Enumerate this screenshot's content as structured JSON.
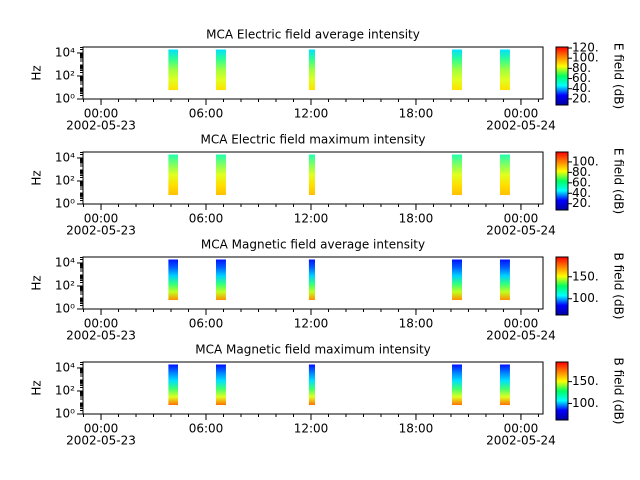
{
  "chart_data": [
    {
      "type": "spectrogram",
      "title": "MCA  Electric field average intensity",
      "ylabel": "Hz",
      "xlim": [
        -1.03,
        25.26
      ],
      "xticks": [
        {
          "value": 0,
          "label": "00:00"
        },
        {
          "value": 6,
          "label": "06:00"
        },
        {
          "value": 12,
          "label": "12:00"
        },
        {
          "value": 18,
          "label": "18:00"
        },
        {
          "value": 24,
          "label": "00:00"
        }
      ],
      "x_date_labels": [
        {
          "value": 0,
          "label": "2002-05-23"
        },
        {
          "value": 24,
          "label": "2002-05-24"
        }
      ],
      "xminor_interval": 1,
      "log_y": true,
      "ylim": [
        1,
        33000
      ],
      "yticks": [
        {
          "value": 1,
          "label": "10⁰"
        },
        {
          "value": 100,
          "label": "10²"
        },
        {
          "value": 10000,
          "label": "10⁴"
        }
      ],
      "bursts": [
        [
          3.85,
          4.4
        ],
        [
          6.57,
          7.14
        ],
        [
          11.88,
          12.23
        ],
        [
          20.06,
          20.63
        ],
        [
          22.8,
          23.37
        ]
      ],
      "burst_freq": [
        6,
        20000
      ],
      "burst_colors": [
        "#00e0ff",
        "#30ff90",
        "#a0ff40",
        "#e0ff20",
        "#ffe000"
      ],
      "colorbar": {
        "label": "E field (dB)",
        "zlim": [
          8,
          122
        ],
        "ticks": [
          {
            "value": 20,
            "label": "20."
          },
          {
            "value": 40,
            "label": "40."
          },
          {
            "value": 60,
            "label": "60."
          },
          {
            "value": 80,
            "label": "80."
          },
          {
            "value": 100,
            "label": "100."
          },
          {
            "value": 120,
            "label": "120."
          }
        ],
        "colors": [
          "#0000a0",
          "#0000ff",
          "#00ffff",
          "#00ff60",
          "#ffff00",
          "#ff8000",
          "#ff0000"
        ]
      }
    },
    {
      "type": "spectrogram",
      "title": "MCA  Electric field maximum intensity",
      "ylabel": "Hz",
      "xlim": [
        -1.03,
        25.26
      ],
      "xticks": [
        {
          "value": 0,
          "label": "00:00"
        },
        {
          "value": 6,
          "label": "06:00"
        },
        {
          "value": 12,
          "label": "12:00"
        },
        {
          "value": 18,
          "label": "18:00"
        },
        {
          "value": 24,
          "label": "00:00"
        }
      ],
      "x_date_labels": [
        {
          "value": 0,
          "label": "2002-05-23"
        },
        {
          "value": 24,
          "label": "2002-05-24"
        }
      ],
      "xminor_interval": 1,
      "log_y": true,
      "ylim": [
        1,
        33000
      ],
      "yticks": [
        {
          "value": 1,
          "label": "10⁰"
        },
        {
          "value": 100,
          "label": "10²"
        },
        {
          "value": 10000,
          "label": "10⁴"
        }
      ],
      "bursts": [
        [
          3.85,
          4.4
        ],
        [
          6.57,
          7.14
        ],
        [
          11.88,
          12.23
        ],
        [
          20.06,
          20.63
        ],
        [
          22.8,
          23.37
        ]
      ],
      "burst_freq": [
        6,
        20000
      ],
      "burst_colors": [
        "#20ffb0",
        "#80ff60",
        "#e0ff20",
        "#ffe000",
        "#ffc000"
      ],
      "colorbar": {
        "label": "E field (dB)",
        "zlim": [
          8,
          119
        ],
        "ticks": [
          {
            "value": 20,
            "label": "20."
          },
          {
            "value": 40,
            "label": "40."
          },
          {
            "value": 60,
            "label": "60."
          },
          {
            "value": 80,
            "label": "80."
          },
          {
            "value": 100,
            "label": "100."
          }
        ],
        "colors": [
          "#0000a0",
          "#0000ff",
          "#00ffff",
          "#00ff60",
          "#ffff00",
          "#ff8000",
          "#ff0000"
        ]
      }
    },
    {
      "type": "spectrogram",
      "title": "MCA  Magnetic field average intensity",
      "ylabel": "Hz",
      "xlim": [
        -1.03,
        25.26
      ],
      "xticks": [
        {
          "value": 0,
          "label": "00:00"
        },
        {
          "value": 6,
          "label": "06:00"
        },
        {
          "value": 12,
          "label": "12:00"
        },
        {
          "value": 18,
          "label": "18:00"
        },
        {
          "value": 24,
          "label": "00:00"
        }
      ],
      "x_date_labels": [
        {
          "value": 0,
          "label": "2002-05-23"
        },
        {
          "value": 24,
          "label": "2002-05-24"
        }
      ],
      "xminor_interval": 1,
      "log_y": true,
      "ylim": [
        1,
        33000
      ],
      "yticks": [
        {
          "value": 1,
          "label": "10⁰"
        },
        {
          "value": 100,
          "label": "10²"
        },
        {
          "value": 10000,
          "label": "10⁴"
        }
      ],
      "bursts": [
        [
          3.85,
          4.4
        ],
        [
          6.57,
          7.14
        ],
        [
          11.88,
          12.23
        ],
        [
          20.06,
          20.63
        ],
        [
          22.8,
          23.37
        ]
      ],
      "burst_freq": [
        6,
        20000
      ],
      "burst_colors": [
        "#0010ff",
        "#0060ff",
        "#00d0ff",
        "#30ff80",
        "#c0ff20",
        "#ff9000"
      ],
      "colorbar": {
        "label": "B field (dB)",
        "zlim": [
          63,
          195
        ],
        "ticks": [
          {
            "value": 100,
            "label": "100."
          },
          {
            "value": 150,
            "label": "150."
          }
        ],
        "colors": [
          "#0000a0",
          "#0000ff",
          "#00ffff",
          "#00ff60",
          "#ffff00",
          "#ff8000",
          "#ff0000"
        ]
      }
    },
    {
      "type": "spectrogram",
      "title": "MCA  Magnetic field maximum intensity",
      "ylabel": "Hz",
      "xlim": [
        -1.03,
        25.26
      ],
      "xticks": [
        {
          "value": 0,
          "label": "00:00"
        },
        {
          "value": 6,
          "label": "06:00"
        },
        {
          "value": 12,
          "label": "12:00"
        },
        {
          "value": 18,
          "label": "18:00"
        },
        {
          "value": 24,
          "label": "00:00"
        }
      ],
      "x_date_labels": [
        {
          "value": 0,
          "label": "2002-05-23"
        },
        {
          "value": 24,
          "label": "2002-05-24"
        }
      ],
      "xminor_interval": 1,
      "log_y": true,
      "ylim": [
        1,
        33000
      ],
      "yticks": [
        {
          "value": 1,
          "label": "10⁰"
        },
        {
          "value": 100,
          "label": "10²"
        },
        {
          "value": 10000,
          "label": "10⁴"
        }
      ],
      "bursts": [
        [
          3.85,
          4.4
        ],
        [
          6.57,
          7.14
        ],
        [
          11.88,
          12.23
        ],
        [
          20.06,
          20.63
        ],
        [
          22.8,
          23.37
        ]
      ],
      "burst_freq": [
        6,
        20000
      ],
      "burst_colors": [
        "#0010ff",
        "#0080ff",
        "#00e0ff",
        "#40ff70",
        "#e0ff20",
        "#ff7000"
      ],
      "colorbar": {
        "label": "B field (dB)",
        "zlim": [
          62,
          195
        ],
        "ticks": [
          {
            "value": 100,
            "label": "100."
          },
          {
            "value": 150,
            "label": "150."
          }
        ],
        "colors": [
          "#0000a0",
          "#0000ff",
          "#00ffff",
          "#00ff60",
          "#ffff00",
          "#ff8000",
          "#ff0000"
        ]
      }
    }
  ]
}
